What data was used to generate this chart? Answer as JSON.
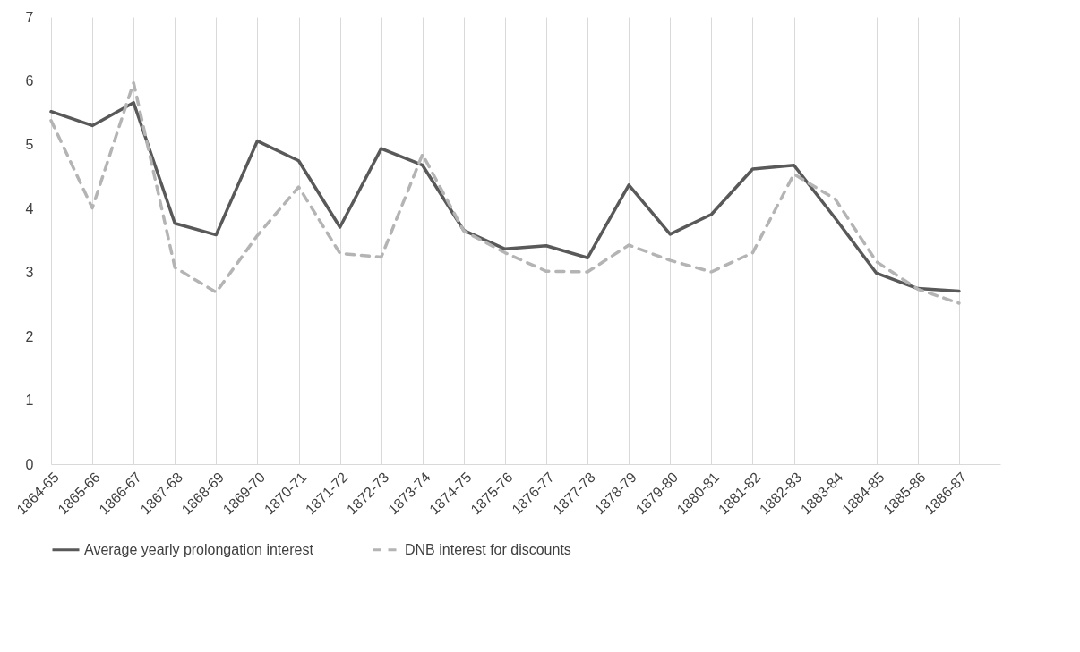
{
  "chart_data": {
    "type": "line",
    "categories": [
      "1864-65",
      "1865-66",
      "1866-67",
      "1867-68",
      "1868-69",
      "1869-70",
      "1870-71",
      "1871-72",
      "1872-73",
      "1873-74",
      "1874-75",
      "1875-76",
      "1876-77",
      "1877-78",
      "1878-79",
      "1879-80",
      "1880-81",
      "1881-82",
      "1882-83",
      "1883-84",
      "1884-85",
      "1885-86",
      "1886-87"
    ],
    "series": [
      {
        "name": "Average yearly prolongation interest",
        "color": "#595959",
        "line_style": "solid",
        "values": [
          5.52,
          5.3,
          5.66,
          3.77,
          3.59,
          5.06,
          4.75,
          3.71,
          4.94,
          4.68,
          3.66,
          3.37,
          3.42,
          3.23,
          4.37,
          3.6,
          3.91,
          4.62,
          4.68,
          3.85,
          2.99,
          2.75,
          2.71
        ]
      },
      {
        "name": "DNB interest for discounts",
        "color": "#b4b4b4",
        "line_style": "dashed",
        "values": [
          5.38,
          4.01,
          5.97,
          3.08,
          2.69,
          3.58,
          4.34,
          3.3,
          3.24,
          4.85,
          3.65,
          3.31,
          3.02,
          3.01,
          3.43,
          3.19,
          3.01,
          3.31,
          4.54,
          4.15,
          3.17,
          2.74,
          2.52
        ]
      }
    ],
    "ylim": [
      0,
      7
    ],
    "yticks": [
      0,
      1,
      2,
      3,
      4,
      5,
      6,
      7
    ],
    "grid": "x",
    "legend": "bottom"
  }
}
